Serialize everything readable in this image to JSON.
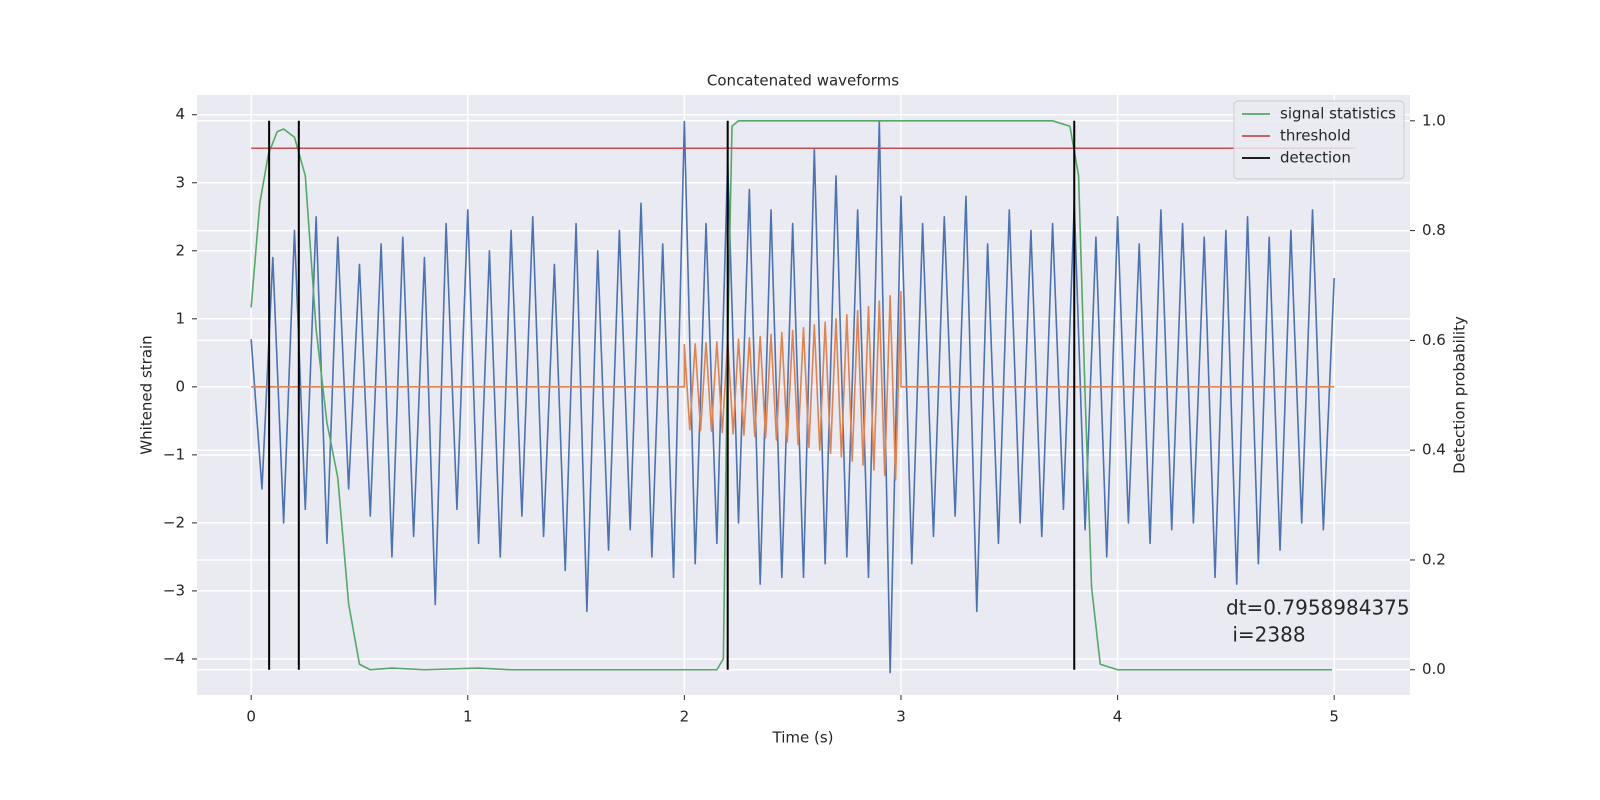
{
  "chart_data": {
    "type": "line",
    "title": "Concatenated waveforms",
    "xlabel": "Time (s)",
    "ylabel": "Whitened strain",
    "y2label": "Detection probability",
    "xlim": [
      -0.25,
      5.35
    ],
    "xticks": [
      0,
      1,
      2,
      3,
      4,
      5
    ],
    "ylim": [
      -4.53,
      4.29
    ],
    "yticks": [
      {
        "value": -4,
        "label": "−4"
      },
      {
        "value": -3,
        "label": "−3"
      },
      {
        "value": -2,
        "label": "−2"
      },
      {
        "value": -1,
        "label": "−1"
      },
      0,
      1,
      2,
      3,
      4
    ],
    "y2lim": [
      -0.046,
      1.047
    ],
    "y2ticks": [
      {
        "value": 0,
        "label": "0.0"
      },
      {
        "value": 0.2,
        "label": "0.2"
      },
      {
        "value": 0.4,
        "label": "0.4"
      },
      {
        "value": 0.6,
        "label": "0.6"
      },
      {
        "value": 0.8,
        "label": "0.8"
      },
      {
        "value": 1.0,
        "label": "1.0"
      }
    ],
    "grid": true,
    "legend": "upper right",
    "annotation": [
      "dt=0.7958984375",
      " i=2388"
    ],
    "series": [
      {
        "color": "#4c72b0",
        "x": [
          0,
          0.05,
          0.1,
          0.15,
          0.2,
          0.25,
          0.3,
          0.35,
          0.4,
          0.45,
          0.5,
          0.55,
          0.6,
          0.65,
          0.7,
          0.75,
          0.8,
          0.85,
          0.9,
          0.95,
          1,
          1.05,
          1.1,
          1.15,
          1.2,
          1.25,
          1.3,
          1.35,
          1.4,
          1.45,
          1.5,
          1.55,
          1.6,
          1.65,
          1.7,
          1.75,
          1.8,
          1.85,
          1.9,
          1.95,
          2,
          2.05,
          2.1,
          2.15,
          2.2,
          2.25,
          2.3,
          2.35,
          2.4,
          2.45,
          2.5,
          2.55,
          2.6,
          2.65,
          2.7,
          2.75,
          2.8,
          2.85,
          2.9,
          2.95,
          3,
          3.05,
          3.1,
          3.15,
          3.2,
          3.25,
          3.3,
          3.35,
          3.4,
          3.45,
          3.5,
          3.55,
          3.6,
          3.65,
          3.7,
          3.75,
          3.8,
          3.85,
          3.9,
          3.95,
          4,
          4.05,
          4.1,
          4.15,
          4.2,
          4.25,
          4.3,
          4.35,
          4.4,
          4.45,
          4.5,
          4.55,
          4.6,
          4.65,
          4.7,
          4.75,
          4.8,
          4.85,
          4.9,
          4.95,
          5
        ],
        "values": [
          0.7,
          -1.5,
          1.9,
          -2.0,
          2.3,
          -1.8,
          2.5,
          -2.3,
          2.2,
          -1.5,
          1.8,
          -1.9,
          2.1,
          -2.5,
          2.2,
          -2.2,
          1.9,
          -3.2,
          2.4,
          -1.8,
          2.6,
          -2.3,
          2.0,
          -2.5,
          2.3,
          -1.9,
          2.5,
          -2.2,
          1.8,
          -2.7,
          2.4,
          -3.3,
          2.0,
          -2.4,
          2.3,
          -2.1,
          2.7,
          -2.5,
          2.1,
          -2.8,
          3.9,
          -2.6,
          2.4,
          -2.3,
          3.3,
          -2.0,
          2.9,
          -2.9,
          2.6,
          -2.8,
          2.4,
          -2.8,
          3.5,
          -2.6,
          3.1,
          -2.5,
          2.6,
          -2.8,
          3.9,
          -4.2,
          2.8,
          -2.6,
          2.4,
          -2.2,
          2.5,
          -1.9,
          2.8,
          -3.3,
          2.1,
          -2.3,
          2.6,
          -2.0,
          2.3,
          -2.2,
          2.4,
          -1.8,
          2.7,
          -2.1,
          2.2,
          -2.5,
          2.5,
          -2.0,
          2.1,
          -2.3,
          2.6,
          -2.1,
          2.4,
          -2.0,
          2.2,
          -2.8,
          2.3,
          -2.9,
          2.5,
          -2.6,
          2.2,
          -2.4,
          2.3,
          -2.0,
          2.6,
          -2.1,
          1.6
        ]
      },
      {
        "color": "#dd8452",
        "x": [
          0,
          2,
          2,
          2.025,
          2.05,
          2.075,
          2.1,
          2.125,
          2.15,
          2.175,
          2.2,
          2.225,
          2.25,
          2.275,
          2.3,
          2.325,
          2.35,
          2.375,
          2.4,
          2.425,
          2.45,
          2.475,
          2.5,
          2.525,
          2.55,
          2.575,
          2.6,
          2.625,
          2.65,
          2.675,
          2.7,
          2.725,
          2.75,
          2.775,
          2.8,
          2.825,
          2.85,
          2.875,
          2.9,
          2.925,
          2.95,
          2.975,
          3,
          3,
          5
        ],
        "values": [
          0,
          0,
          0.62,
          -0.63,
          0.63,
          -0.64,
          0.65,
          -0.65,
          0.66,
          -0.67,
          0.68,
          -0.69,
          0.7,
          -0.71,
          0.72,
          -0.73,
          0.74,
          -0.75,
          0.77,
          -0.78,
          0.8,
          -0.81,
          0.83,
          -0.85,
          0.87,
          -0.89,
          0.91,
          -0.93,
          0.95,
          -0.98,
          1.0,
          -1.03,
          1.06,
          -1.09,
          1.12,
          -1.15,
          1.18,
          -1.22,
          1.26,
          -1.3,
          1.34,
          -1.37,
          1.4,
          0,
          0
        ]
      },
      {
        "name": "signal statistics",
        "color": "#55a868",
        "axis": "y2",
        "x": [
          0,
          0.04,
          0.08,
          0.12,
          0.15,
          0.2,
          0.25,
          0.3,
          0.35,
          0.4,
          0.45,
          0.5,
          0.55,
          0.65,
          0.8,
          1.05,
          1.2,
          2.15,
          2.18,
          2.2,
          2.22,
          2.25,
          3.7,
          3.78,
          3.82,
          3.85,
          3.88,
          3.92,
          4,
          4.99
        ],
        "values": [
          0.66,
          0.85,
          0.94,
          0.98,
          0.985,
          0.97,
          0.9,
          0.62,
          0.45,
          0.35,
          0.12,
          0.01,
          0.0,
          0.003,
          0.0,
          0.003,
          0.0,
          0.0,
          0.02,
          0.6,
          0.99,
          1.0,
          1.0,
          0.99,
          0.9,
          0.5,
          0.15,
          0.01,
          0.0,
          0.0
        ]
      },
      {
        "name": "threshold",
        "color": "#c44e52",
        "axis": "y2",
        "x": [
          0,
          5.1
        ],
        "values": [
          0.95,
          0.95
        ]
      },
      {
        "name": "detection",
        "type": "vlines",
        "color": "#000000",
        "axis": "y2",
        "x": [
          0.083,
          0.22,
          2.2,
          3.8
        ],
        "ymin": 0,
        "ymax": 1
      }
    ]
  }
}
